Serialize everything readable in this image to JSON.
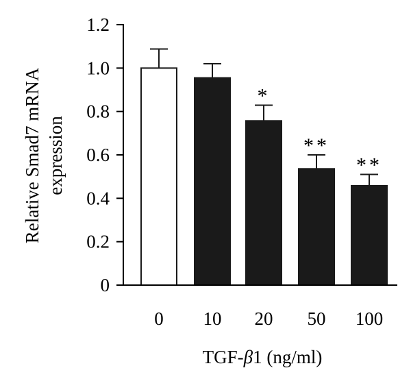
{
  "chart_data": {
    "type": "bar",
    "categories": [
      "0",
      "10",
      "20",
      "50",
      "100"
    ],
    "values": [
      1.0,
      0.955,
      0.757,
      0.536,
      0.458
    ],
    "errors": [
      0.088,
      0.065,
      0.072,
      0.064,
      0.052
    ],
    "significance": [
      "",
      "",
      "*",
      "**",
      "**"
    ],
    "bar_fills": [
      "#ffffff",
      "#1a1a1a",
      "#1a1a1a",
      "#1a1a1a",
      "#1a1a1a"
    ],
    "xlabel_prefix": "TGF-",
    "xlabel_symbol": "β",
    "xlabel_suffix": "1 (ng/ml)",
    "ylabel_line1": "Relative Smad7 mRNA",
    "ylabel_line2": "expression",
    "ylim": [
      0,
      1.2
    ],
    "yticks": [
      "0",
      "0.2",
      "0.4",
      "0.6",
      "0.8",
      "1.0",
      "1.2"
    ],
    "grid": false,
    "axis_color": "#000000"
  }
}
